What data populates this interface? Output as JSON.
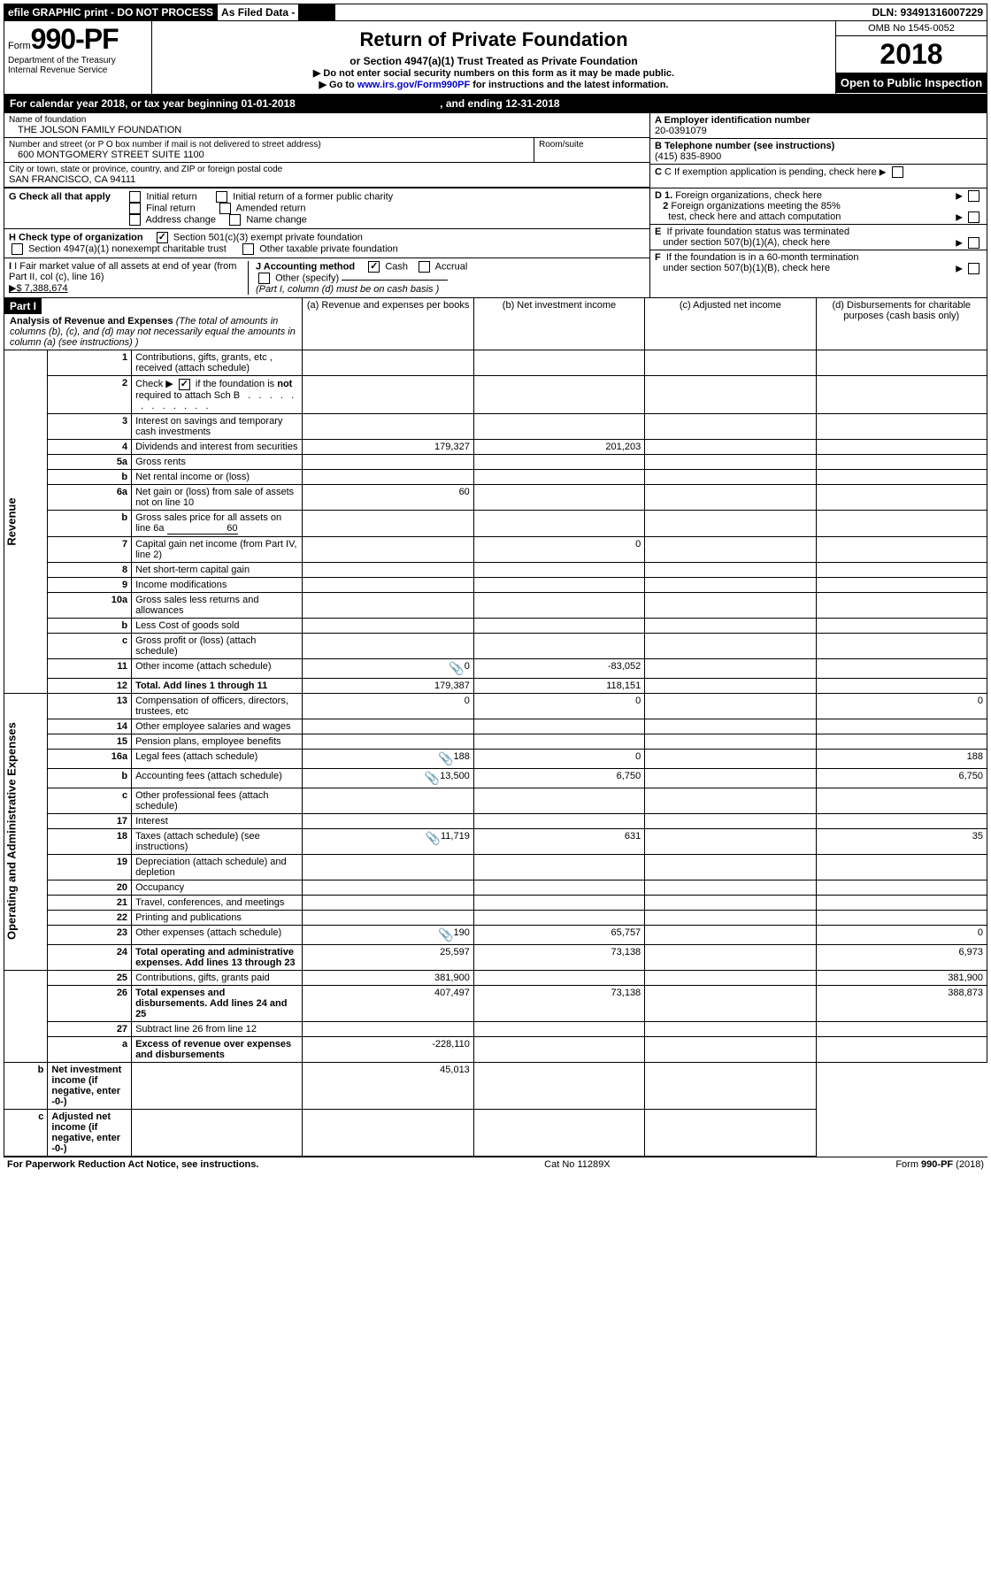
{
  "topbar": {
    "efile": "efile GRAPHIC print - DO NOT PROCESS",
    "asfiled": "As Filed Data - ",
    "dln": "DLN: 93491316007229"
  },
  "header": {
    "form_prefix": "Form",
    "form_num": "990-PF",
    "dept": "Department of the Treasury",
    "irs": "Internal Revenue Service",
    "title": "Return of Private Foundation",
    "subtitle": "or Section 4947(a)(1) Trust Treated as Private Foundation",
    "note1": "▶ Do not enter social security numbers on this form as it may be made public.",
    "note2_pre": "▶ Go to ",
    "note2_link": "www.irs.gov/Form990PF",
    "note2_post": " for instructions and the latest information.",
    "omb": "OMB No 1545-0052",
    "year": "2018",
    "open": "Open to Public Inspection"
  },
  "calyear": {
    "text_pre": "For calendar year 2018, or tax year beginning ",
    "begin": "01-01-2018",
    "mid": " , and ending ",
    "end": "12-31-2018"
  },
  "info": {
    "name_label": "Name of foundation",
    "name": "THE JOLSON FAMILY FOUNDATION",
    "a_label": "A Employer identification number",
    "a_val": "20-0391079",
    "addr_label": "Number and street (or P O  box number if mail is not delivered to street address)",
    "addr": "600 MONTGOMERY STREET SUITE 1100",
    "room_label": "Room/suite",
    "b_label": "B Telephone number (see instructions)",
    "b_val": "(415) 835-8900",
    "city_label": "City or town, state or province, country, and ZIP or foreign postal code",
    "city": "SAN FRANCISCO, CA  94111",
    "c_label": "C If exemption application is pending, check here",
    "g_label": "G Check all that apply",
    "g1": "Initial return",
    "g2": "Initial return of a former public charity",
    "g3": "Final return",
    "g4": "Amended return",
    "g5": "Address change",
    "g6": "Name change",
    "d1": "D 1. Foreign organizations, check here",
    "d2a": "2 Foreign organizations meeting the 85%",
    "d2b": "test, check here and attach computation",
    "h_label": "H Check type of organization",
    "h1": "Section 501(c)(3) exempt private foundation",
    "h2": "Section 4947(a)(1) nonexempt charitable trust",
    "h3": "Other taxable private foundation",
    "e1": "E  If private foundation status was terminated",
    "e2": "under section 507(b)(1)(A), check here",
    "i_label": "I Fair market value of all assets at end of year (from Part II, col  (c), line 16)",
    "i_val": "▶$  7,388,674",
    "j_label": "J Accounting method",
    "j1": "Cash",
    "j2": "Accrual",
    "j3": "Other (specify)",
    "j_note": "(Part I, column (d) must be on cash basis )",
    "f1": "F  If the foundation is in a 60-month termination",
    "f2": "under section 507(b)(1)(B), check here"
  },
  "part1": {
    "label": "Part I",
    "title": "Analysis of Revenue and Expenses",
    "title_note": "(The total of amounts in columns (b), (c), and (d) may not necessarily equal the amounts in column (a) (see instructions) )",
    "col_a": "(a) Revenue and expenses per books",
    "col_b": "(b) Net investment income",
    "col_c": "(c) Adjusted net income",
    "col_d": "(d) Disbursements for charitable purposes (cash basis only)"
  },
  "sides": {
    "revenue": "Revenue",
    "expenses": "Operating and Administrative Expenses"
  },
  "rows": [
    {
      "n": "1",
      "d": "Contributions, gifts, grants, etc , received (attach schedule)"
    },
    {
      "n": "2",
      "d": "Check ▶ ☑ if the foundation is not required to attach Sch B"
    },
    {
      "n": "3",
      "d": "Interest on savings and temporary cash investments"
    },
    {
      "n": "4",
      "d": "Dividends and interest from securities",
      "a": "179,327",
      "b": "201,203"
    },
    {
      "n": "5a",
      "d": "Gross rents"
    },
    {
      "n": "b",
      "d": "Net rental income or (loss)"
    },
    {
      "n": "6a",
      "d": "Net gain or (loss) from sale of assets not on line 10",
      "a": "60"
    },
    {
      "n": "b",
      "d": "Gross sales price for all assets on line 6a",
      "inline": "60"
    },
    {
      "n": "7",
      "d": "Capital gain net income (from Part IV, line 2)",
      "b": "0"
    },
    {
      "n": "8",
      "d": "Net short-term capital gain"
    },
    {
      "n": "9",
      "d": "Income modifications"
    },
    {
      "n": "10a",
      "d": "Gross sales less returns and allowances"
    },
    {
      "n": "b",
      "d": "Less  Cost of goods sold"
    },
    {
      "n": "c",
      "d": "Gross profit or (loss) (attach schedule)"
    },
    {
      "n": "11",
      "d": "Other income (attach schedule)",
      "clip": true,
      "a": "0",
      "b": "-83,052"
    },
    {
      "n": "12",
      "d": "Total. Add lines 1 through 11",
      "bold": true,
      "a": "179,387",
      "b": "118,151"
    },
    {
      "n": "13",
      "d": "Compensation of officers, directors, trustees, etc",
      "a": "0",
      "b": "0",
      "dd": "0"
    },
    {
      "n": "14",
      "d": "Other employee salaries and wages"
    },
    {
      "n": "15",
      "d": "Pension plans, employee benefits"
    },
    {
      "n": "16a",
      "d": "Legal fees (attach schedule)",
      "clip": true,
      "a": "188",
      "b": "0",
      "dd": "188"
    },
    {
      "n": "b",
      "d": "Accounting fees (attach schedule)",
      "clip": true,
      "a": "13,500",
      "b": "6,750",
      "dd": "6,750"
    },
    {
      "n": "c",
      "d": "Other professional fees (attach schedule)"
    },
    {
      "n": "17",
      "d": "Interest"
    },
    {
      "n": "18",
      "d": "Taxes (attach schedule) (see instructions)",
      "clip": true,
      "a": "11,719",
      "b": "631",
      "dd": "35"
    },
    {
      "n": "19",
      "d": "Depreciation (attach schedule) and depletion"
    },
    {
      "n": "20",
      "d": "Occupancy"
    },
    {
      "n": "21",
      "d": "Travel, conferences, and meetings"
    },
    {
      "n": "22",
      "d": "Printing and publications"
    },
    {
      "n": "23",
      "d": "Other expenses (attach schedule)",
      "clip": true,
      "a": "190",
      "b": "65,757",
      "dd": "0"
    },
    {
      "n": "24",
      "d": "Total operating and administrative expenses. Add lines 13 through 23",
      "bold": true,
      "a": "25,597",
      "b": "73,138",
      "dd": "6,973"
    },
    {
      "n": "25",
      "d": "Contributions, gifts, grants paid",
      "a": "381,900",
      "dd": "381,900"
    },
    {
      "n": "26",
      "d": "Total expenses and disbursements. Add lines 24 and 25",
      "bold": true,
      "a": "407,497",
      "b": "73,138",
      "dd": "388,873"
    },
    {
      "n": "27",
      "d": "Subtract line 26 from line 12"
    },
    {
      "n": "a",
      "d": "Excess of revenue over expenses and disbursements",
      "bold": true,
      "a": "-228,110"
    },
    {
      "n": "b",
      "d": "Net investment income (if negative, enter -0-)",
      "bold": true,
      "b": "45,013"
    },
    {
      "n": "c",
      "d": "Adjusted net income (if negative, enter -0-)",
      "bold": true
    }
  ],
  "footer": {
    "left": "For Paperwork Reduction Act Notice, see instructions.",
    "mid": "Cat No  11289X",
    "right": "Form 990-PF (2018)"
  }
}
